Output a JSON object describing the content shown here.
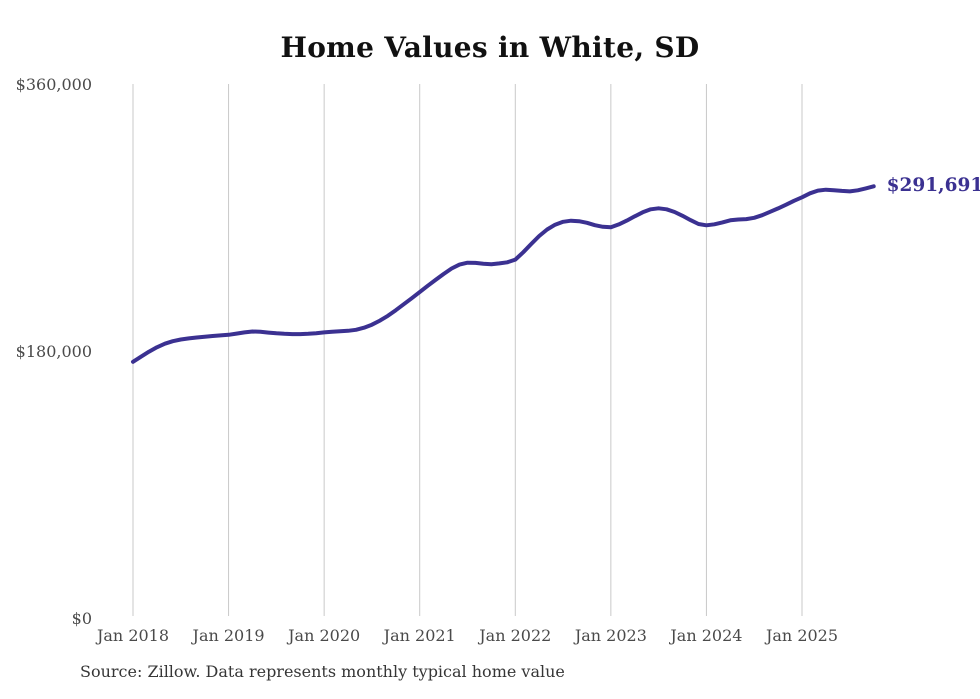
{
  "title": "Home Values in White, SD",
  "source_note": "Source: Zillow. Data represents monthly typical home value",
  "colors": {
    "line": "#3b3191",
    "value_label": "#3b3191",
    "grid": "#c9c9c9",
    "tick_text": "#4a4a4a",
    "title_text": "#111111",
    "source_text": "#363636",
    "background": "#ffffff"
  },
  "chart_data": {
    "type": "line",
    "title": "Home Values in White, SD",
    "frequency": "monthly",
    "x_start": "Jan 2018",
    "x_end": "Oct 2025",
    "x_ticks": [
      "Jan 2018",
      "Jan 2019",
      "Jan 2020",
      "Jan 2021",
      "Jan 2022",
      "Jan 2023",
      "Jan 2024",
      "Jan 2025"
    ],
    "y_ticks": [
      "$360,000",
      "$180,000",
      "$0"
    ],
    "y_tick_values": [
      360000,
      180000,
      0
    ],
    "ylim": [
      0,
      360000
    ],
    "grid": "vertical",
    "legend": "none",
    "end_label": "$291,691",
    "latest_value": 291691,
    "series": [
      {
        "name": "Typical home value (USD)",
        "values": [
          173400,
          176800,
          180200,
          183200,
          185600,
          187300,
          188400,
          189200,
          189800,
          190300,
          190800,
          191200,
          191600,
          192400,
          193200,
          193800,
          193600,
          193100,
          192600,
          192300,
          192100,
          192100,
          192300,
          192700,
          193200,
          193700,
          194000,
          194300,
          195000,
          196400,
          198400,
          201200,
          204400,
          208200,
          212200,
          216300,
          220400,
          224600,
          228600,
          232600,
          236300,
          238900,
          240200,
          240100,
          239500,
          239200,
          239700,
          240500,
          242300,
          247300,
          252800,
          258200,
          262600,
          265800,
          267800,
          268500,
          268200,
          267100,
          265500,
          264400,
          264100,
          266000,
          268600,
          271500,
          274200,
          276200,
          276900,
          276200,
          274400,
          271800,
          268900,
          266300,
          265400,
          266100,
          267400,
          268800,
          269300,
          269600,
          270500,
          272200,
          274500,
          276800,
          279300,
          281900,
          284300,
          287000,
          288800,
          289400,
          289100,
          288600,
          288300,
          289000,
          290300,
          291691
        ]
      }
    ]
  }
}
